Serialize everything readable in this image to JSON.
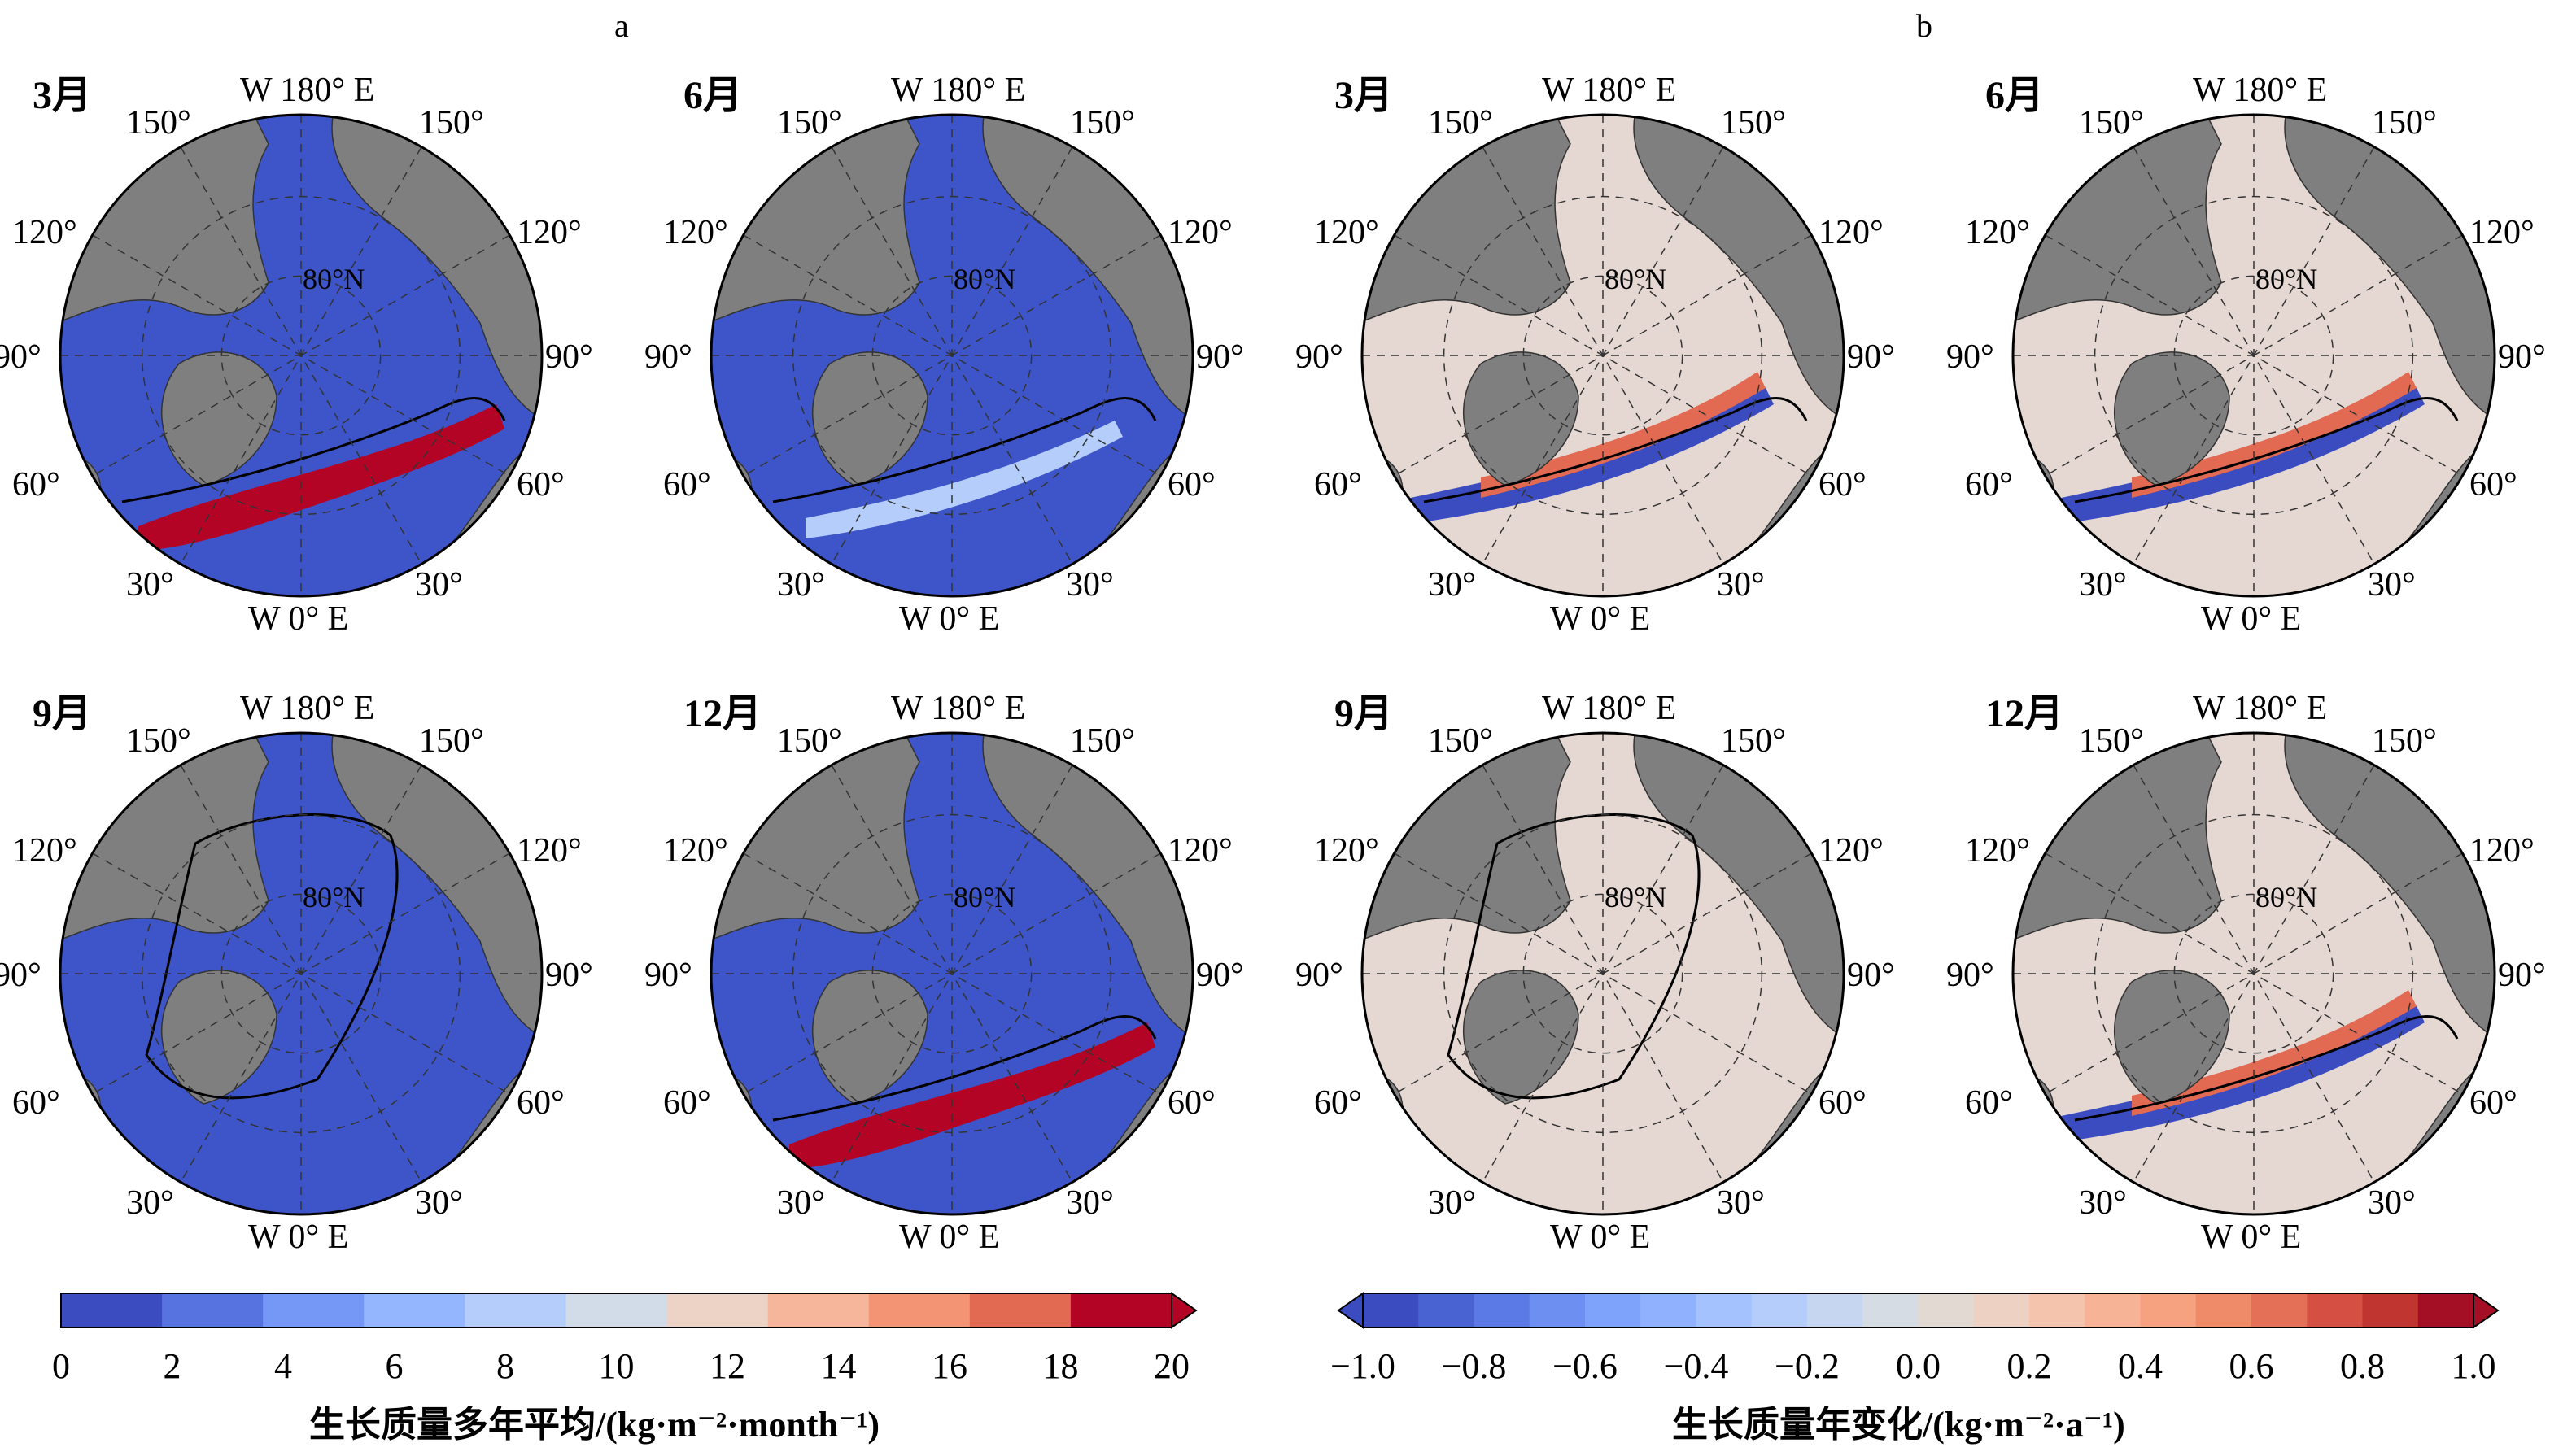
{
  "panels": [
    {
      "id": "a",
      "label": "a",
      "title": "生长质量多年平均/(kg·m⁻²·month⁻¹)",
      "cbar": {
        "min": 0,
        "max": 20,
        "ticks": [
          "0",
          "2",
          "4",
          "6",
          "8",
          "10",
          "12",
          "14",
          "16",
          "18",
          "20"
        ],
        "colors": [
          "#3b4cc0",
          "#5673e0",
          "#7597f6",
          "#94b6ff",
          "#b4cdfa",
          "#d2dbe8",
          "#ecd3c5",
          "#f6b69b",
          "#f39475",
          "#e26952",
          "#b40426"
        ],
        "extend": "max"
      }
    },
    {
      "id": "b",
      "label": "b",
      "title": "生长质量年变化/(kg·m⁻²·a⁻¹)",
      "cbar": {
        "min": -1.0,
        "max": 1.0,
        "ticks": [
          "−1.0",
          "−0.8",
          "−0.6",
          "−0.4",
          "−0.2",
          "0.0",
          "0.2",
          "0.4",
          "0.6",
          "0.8",
          "1.0"
        ],
        "colors": [
          "#3b4cc0",
          "#4a63d3",
          "#5b7ae5",
          "#6c8ff1",
          "#7ea3fa",
          "#90b2fe",
          "#a3c2fe",
          "#b5cdfa",
          "#c6d6f1",
          "#d6dce4",
          "#e3d9d3",
          "#edd1c2",
          "#f4c4ad",
          "#f7b396",
          "#f6a280",
          "#f08b6a",
          "#e57058",
          "#d55042",
          "#c13530",
          "#a50f26"
        ],
        "extend": "both"
      }
    }
  ],
  "maps": [
    {
      "id": "a-mar",
      "panel": "a",
      "month": "3月"
    },
    {
      "id": "a-jun",
      "panel": "a",
      "month": "6月"
    },
    {
      "id": "a-sep",
      "panel": "a",
      "month": "9月"
    },
    {
      "id": "a-dec",
      "panel": "a",
      "month": "12月"
    },
    {
      "id": "b-mar",
      "panel": "b",
      "month": "3月"
    },
    {
      "id": "b-jun",
      "panel": "b",
      "month": "6月"
    },
    {
      "id": "b-sep",
      "panel": "b",
      "month": "9月"
    },
    {
      "id": "b-dec",
      "panel": "b",
      "month": "12月"
    }
  ],
  "map_labels": {
    "top": "W 180° E",
    "bottom": "W 0° E",
    "lat": "80°N",
    "lon_150": "150°",
    "lon_120": "120°",
    "lon_90": "90°",
    "lon_60": "60°",
    "lon_30": "30°"
  },
  "colors": {
    "land": "#7f7f7f",
    "ocean_low": "#3d55c8",
    "ocean_neutral": "#e5d8d2",
    "high": "#b40426",
    "neg": "#3b4cc0"
  }
}
